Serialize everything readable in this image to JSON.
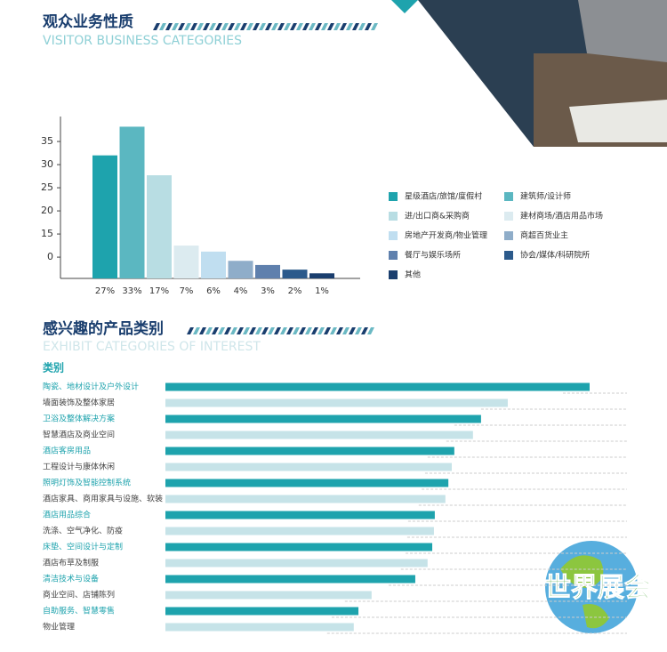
{
  "chart_data": [
    {
      "type": "bar",
      "title": "观众业务性质",
      "subtitle": "VISITOR BUSINESS CATEGORIES",
      "categories": [
        "27%",
        "33%",
        "17%",
        "7%",
        "6%",
        "4%",
        "3%",
        "2%",
        "1%"
      ],
      "values": [
        32,
        38.2,
        27.7,
        12.5,
        11.2,
        9.2,
        8.3,
        7.3,
        6.5
      ],
      "colors": [
        "#1ea3ad",
        "#5bb7c1",
        "#b8dde3",
        "#dcebf0",
        "#c0def0",
        "#8fadc9",
        "#5f80ad",
        "#2c5a8b",
        "#1a3e6e"
      ],
      "legend": [
        "星级酒店/旅馆/度假村",
        "建筑师/设计师",
        "进/出口商&采购商",
        "建材商场/酒店用品市场",
        "房地产开发商/物业管理",
        "商超百货业主",
        "餐厅与娱乐场所",
        "协会/媒体/科研院所",
        "其他"
      ],
      "ylim": [
        5.4,
        40.4
      ],
      "yticks": [
        {
          "value": 10,
          "label": "0"
        },
        15,
        20,
        25,
        30,
        35
      ]
    },
    {
      "type": "bar",
      "orientation": "horizontal",
      "title": "感兴趣的产品类别",
      "subtitle": "EXHIBIT CATEGORIES OF INTEREST",
      "category_label": "类别",
      "categories": [
        "陶瓷、地材设计及户外设计",
        "墙面装饰及整体家居",
        "卫浴及整体解决方案",
        "智慧酒店及商业空间",
        "酒店客房用品",
        "工程设计与康体休闲",
        "照明灯饰及智能控制系统",
        "酒店家具、商用家具与设施、软装",
        "酒店用品综合",
        "洗涤、空气净化、防疫",
        "床垫、空间设计与定制",
        "酒店布草及制服",
        "清洁技术与设备",
        "商业空间、店铺陈列",
        "自助服务、智慧零售",
        "物业管理"
      ],
      "values": [
        100,
        80.7,
        74.4,
        72.5,
        68.1,
        67.5,
        66.7,
        66.0,
        63.5,
        63.3,
        62.9,
        61.8,
        58.9,
        48.6,
        45.5,
        44.4
      ],
      "colors": [
        "#1ea3ad",
        "#c6e3e8"
      ],
      "xlim": [
        0,
        100
      ]
    }
  ],
  "logo": "世界展会"
}
